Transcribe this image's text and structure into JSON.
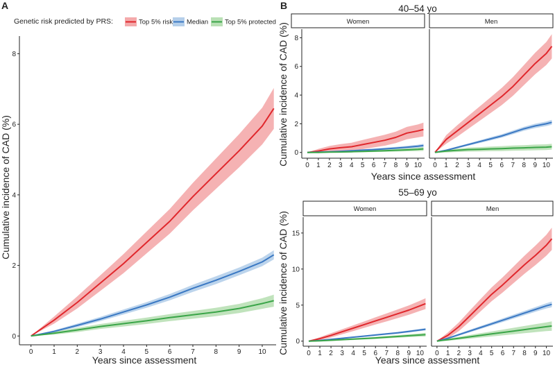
{
  "figure": {
    "panel_a_label": "A",
    "panel_b_label": "B"
  },
  "legend": {
    "title": "Genetic risk predicted by PRS:",
    "items": [
      {
        "label": "Top 5% risk",
        "color": "#e0272c",
        "band": "#f4aaab"
      },
      {
        "label": "Median",
        "color": "#3a78c3",
        "band": "#b5cfea"
      },
      {
        "label": "Top 5% protected",
        "color": "#3aa548",
        "band": "#b9e0b5"
      }
    ]
  },
  "chart_data": [
    {
      "id": "A",
      "type": "area",
      "title": "",
      "xlabel": "Years since assessment",
      "ylabel": "Cumulative incidence of CAD (%)",
      "xlim": [
        -0.5,
        10.6
      ],
      "ylim": [
        -0.25,
        8.5
      ],
      "xticks": [
        0,
        1,
        2,
        3,
        4,
        5,
        6,
        7,
        8,
        9,
        10
      ],
      "yticks": [
        0,
        2,
        4,
        6,
        8
      ],
      "series": [
        {
          "name": "Top 5% risk",
          "x": [
            0,
            1,
            2,
            3,
            4,
            5,
            6,
            7,
            8,
            9,
            10,
            10.5
          ],
          "y": [
            0,
            0.45,
            0.95,
            1.5,
            2.05,
            2.65,
            3.25,
            3.95,
            4.6,
            5.25,
            5.95,
            6.45
          ],
          "ci": [
            0,
            0.1,
            0.17,
            0.22,
            0.27,
            0.31,
            0.35,
            0.39,
            0.43,
            0.47,
            0.52,
            0.58
          ]
        },
        {
          "name": "Median",
          "x": [
            0,
            1,
            2,
            3,
            4,
            5,
            6,
            7,
            8,
            9,
            10,
            10.5
          ],
          "y": [
            0,
            0.13,
            0.3,
            0.48,
            0.68,
            0.88,
            1.1,
            1.35,
            1.58,
            1.83,
            2.1,
            2.3
          ],
          "ci": [
            0,
            0.03,
            0.05,
            0.06,
            0.07,
            0.08,
            0.09,
            0.1,
            0.11,
            0.11,
            0.12,
            0.13
          ]
        },
        {
          "name": "Top 5% protected",
          "x": [
            0,
            1,
            2,
            3,
            4,
            5,
            6,
            7,
            8,
            9,
            10,
            10.5
          ],
          "y": [
            0,
            0.08,
            0.17,
            0.27,
            0.35,
            0.43,
            0.52,
            0.6,
            0.68,
            0.78,
            0.92,
            1.0
          ],
          "ci": [
            0,
            0.04,
            0.06,
            0.07,
            0.08,
            0.09,
            0.1,
            0.11,
            0.12,
            0.13,
            0.15,
            0.17
          ]
        }
      ]
    },
    {
      "id": "B1",
      "group_title": "40–54 yo",
      "type": "area",
      "xlabel": "Years since assessment",
      "ylabel": "Cumulative incidence of CAD (%)",
      "xlim": [
        -0.5,
        10.6
      ],
      "ylim": [
        -0.4,
        8.6
      ],
      "xticks": [
        0,
        1,
        2,
        3,
        4,
        5,
        6,
        7,
        8,
        9,
        10
      ],
      "yticks": [
        0,
        2,
        4,
        6,
        8
      ],
      "facets": [
        {
          "label": "Women",
          "series": [
            {
              "name": "Top 5% risk",
              "x": [
                0,
                1,
                2,
                3,
                4,
                5,
                6,
                7,
                8,
                9,
                10,
                10.5
              ],
              "y": [
                0,
                0.1,
                0.25,
                0.33,
                0.4,
                0.55,
                0.7,
                0.85,
                1.05,
                1.35,
                1.5,
                1.6
              ],
              "ci": [
                0,
                0.15,
                0.2,
                0.25,
                0.28,
                0.32,
                0.35,
                0.38,
                0.4,
                0.43,
                0.45,
                0.48
              ]
            },
            {
              "name": "Median",
              "x": [
                0,
                1,
                2,
                3,
                4,
                5,
                6,
                7,
                8,
                9,
                10,
                10.5
              ],
              "y": [
                0,
                0.02,
                0.05,
                0.08,
                0.12,
                0.16,
                0.2,
                0.25,
                0.3,
                0.36,
                0.43,
                0.48
              ],
              "ci": [
                0,
                0.02,
                0.03,
                0.04,
                0.05,
                0.06,
                0.07,
                0.08,
                0.09,
                0.1,
                0.11,
                0.12
              ]
            },
            {
              "name": "Top 5% protected",
              "x": [
                0,
                1,
                2,
                3,
                4,
                5,
                6,
                7,
                8,
                9,
                10,
                10.5
              ],
              "y": [
                0,
                0.0,
                0.02,
                0.03,
                0.05,
                0.07,
                0.1,
                0.12,
                0.15,
                0.18,
                0.22,
                0.25
              ],
              "ci": [
                0,
                0.02,
                0.03,
                0.04,
                0.05,
                0.06,
                0.07,
                0.08,
                0.09,
                0.1,
                0.12,
                0.14
              ]
            }
          ]
        },
        {
          "label": "Men",
          "series": [
            {
              "name": "Top 5% risk",
              "x": [
                0,
                1,
                2,
                3,
                4,
                5,
                6,
                7,
                8,
                9,
                10,
                10.5
              ],
              "y": [
                0,
                0.9,
                1.5,
                2.1,
                2.7,
                3.3,
                3.9,
                4.6,
                5.4,
                6.2,
                6.9,
                7.4
              ],
              "ci": [
                0,
                0.3,
                0.4,
                0.45,
                0.5,
                0.55,
                0.6,
                0.65,
                0.7,
                0.75,
                0.8,
                0.85
              ]
            },
            {
              "name": "Median",
              "x": [
                0,
                1,
                2,
                3,
                4,
                5,
                6,
                7,
                8,
                9,
                10,
                10.5
              ],
              "y": [
                0,
                0.15,
                0.35,
                0.55,
                0.75,
                0.95,
                1.15,
                1.4,
                1.65,
                1.85,
                2.0,
                2.1
              ],
              "ci": [
                0,
                0.05,
                0.07,
                0.08,
                0.1,
                0.11,
                0.12,
                0.13,
                0.14,
                0.15,
                0.16,
                0.17
              ]
            },
            {
              "name": "Top 5% protected",
              "x": [
                0,
                1,
                2,
                3,
                4,
                5,
                6,
                7,
                8,
                9,
                10,
                10.5
              ],
              "y": [
                0,
                0.1,
                0.15,
                0.2,
                0.22,
                0.25,
                0.27,
                0.3,
                0.32,
                0.35,
                0.37,
                0.4
              ],
              "ci": [
                0,
                0.1,
                0.12,
                0.14,
                0.15,
                0.16,
                0.17,
                0.18,
                0.19,
                0.2,
                0.2,
                0.2
              ]
            }
          ]
        }
      ]
    },
    {
      "id": "B2",
      "group_title": "55–69 yo",
      "type": "area",
      "xlabel": "Years since assessment",
      "ylabel": "Cumulative incidence of CAD (%)",
      "xlim": [
        -0.5,
        10.6
      ],
      "ylim": [
        -0.7,
        17.2
      ],
      "xticks": [
        0,
        1,
        2,
        3,
        4,
        5,
        6,
        7,
        8,
        9,
        10
      ],
      "yticks": [
        0,
        5,
        10,
        15
      ],
      "facets": [
        {
          "label": "Women",
          "series": [
            {
              "name": "Top 5% risk",
              "x": [
                0,
                1,
                2,
                3,
                4,
                5,
                6,
                7,
                8,
                9,
                10,
                10.5
              ],
              "y": [
                0,
                0.35,
                0.8,
                1.3,
                1.8,
                2.3,
                2.8,
                3.3,
                3.8,
                4.3,
                4.9,
                5.2
              ],
              "ci": [
                0,
                0.2,
                0.3,
                0.35,
                0.4,
                0.45,
                0.5,
                0.55,
                0.6,
                0.65,
                0.7,
                0.75
              ]
            },
            {
              "name": "Median",
              "x": [
                0,
                1,
                2,
                3,
                4,
                5,
                6,
                7,
                8,
                9,
                10,
                10.5
              ],
              "y": [
                0,
                0.1,
                0.25,
                0.4,
                0.55,
                0.7,
                0.85,
                1.0,
                1.15,
                1.35,
                1.55,
                1.65
              ],
              "ci": [
                0,
                0.05,
                0.07,
                0.08,
                0.09,
                0.1,
                0.11,
                0.12,
                0.13,
                0.14,
                0.15,
                0.16
              ]
            },
            {
              "name": "Top 5% protected",
              "x": [
                0,
                1,
                2,
                3,
                4,
                5,
                6,
                7,
                8,
                9,
                10,
                10.5
              ],
              "y": [
                0,
                0.05,
                0.12,
                0.2,
                0.28,
                0.36,
                0.45,
                0.55,
                0.65,
                0.75,
                0.85,
                0.9
              ],
              "ci": [
                0,
                0.05,
                0.08,
                0.1,
                0.12,
                0.13,
                0.15,
                0.17,
                0.18,
                0.2,
                0.22,
                0.25
              ]
            }
          ]
        },
        {
          "label": "Men",
          "series": [
            {
              "name": "Top 5% risk",
              "x": [
                0,
                1,
                2,
                3,
                4,
                5,
                6,
                7,
                8,
                9,
                10,
                10.5
              ],
              "y": [
                0,
                0.8,
                2.0,
                3.5,
                5.0,
                6.5,
                7.8,
                9.2,
                10.6,
                11.9,
                13.3,
                14.2
              ],
              "ci": [
                0,
                0.4,
                0.6,
                0.75,
                0.85,
                0.95,
                1.05,
                1.15,
                1.25,
                1.35,
                1.45,
                1.55
              ]
            },
            {
              "name": "Median",
              "x": [
                0,
                1,
                2,
                3,
                4,
                5,
                6,
                7,
                8,
                9,
                10,
                10.5
              ],
              "y": [
                0,
                0.4,
                0.9,
                1.4,
                1.9,
                2.4,
                2.9,
                3.4,
                3.9,
                4.4,
                4.9,
                5.1
              ],
              "ci": [
                0,
                0.1,
                0.15,
                0.18,
                0.2,
                0.22,
                0.25,
                0.28,
                0.3,
                0.33,
                0.36,
                0.4
              ]
            },
            {
              "name": "Top 5% protected",
              "x": [
                0,
                1,
                2,
                3,
                4,
                5,
                6,
                7,
                8,
                9,
                10,
                10.5
              ],
              "y": [
                0,
                0.2,
                0.4,
                0.6,
                0.8,
                1.0,
                1.2,
                1.4,
                1.6,
                1.8,
                2.0,
                2.1
              ],
              "ci": [
                0,
                0.15,
                0.2,
                0.25,
                0.3,
                0.35,
                0.4,
                0.45,
                0.5,
                0.55,
                0.6,
                0.65
              ]
            }
          ]
        }
      ]
    }
  ]
}
